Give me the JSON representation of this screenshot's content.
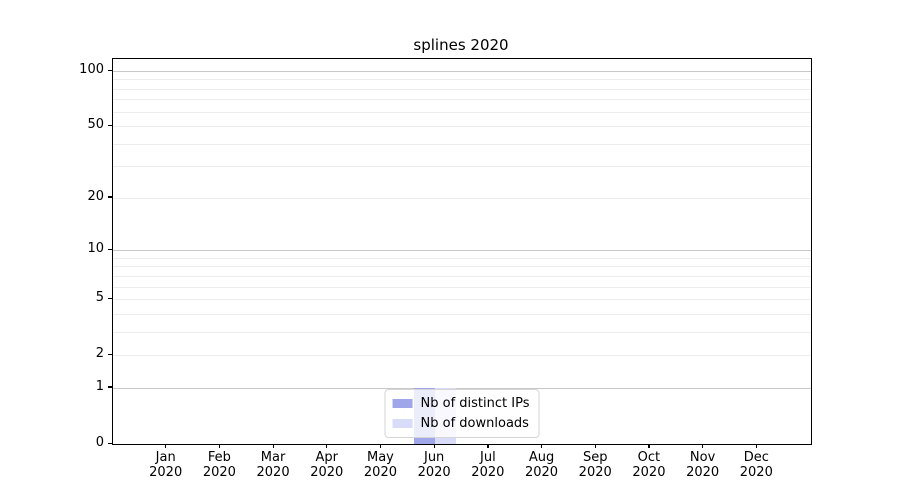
{
  "figure": {
    "title": "splines 2020",
    "background": "#ffffff"
  },
  "chart_data": {
    "type": "bar",
    "title": "splines 2020",
    "categories": [
      "Jan",
      "Feb",
      "Mar",
      "Apr",
      "May",
      "Jun",
      "Jul",
      "Aug",
      "Sep",
      "Oct",
      "Nov",
      "Dec"
    ],
    "category_year": "2020",
    "series": [
      {
        "name": "Nb of distinct IPs",
        "color": "#9fa6ea",
        "values": [
          0,
          0,
          0,
          0,
          0,
          1,
          0,
          0,
          0,
          0,
          0,
          0
        ]
      },
      {
        "name": "Nb of downloads",
        "color": "#d9dcf8",
        "values": [
          0,
          0,
          0,
          0,
          0,
          1,
          0,
          0,
          0,
          0,
          0,
          0
        ]
      }
    ],
    "yscale": "log1p",
    "ylim": [
      0,
      116
    ],
    "yticks": [
      0,
      1,
      2,
      5,
      10,
      20,
      50,
      100
    ],
    "major_gridlines": [
      1,
      10,
      100
    ],
    "minor_gridlines": [
      2,
      3,
      4,
      5,
      6,
      7,
      8,
      9,
      20,
      30,
      40,
      50,
      60,
      70,
      80,
      90
    ],
    "grid": true,
    "legend_position": "lower center",
    "colors": {
      "major_grid": "#c8c8c8",
      "minor_grid": "#ededed",
      "spine": "#000000",
      "text": "#000000",
      "legend_border": "#d5d5d5",
      "legend_bg": "rgba(255,255,255,0.8)"
    }
  }
}
